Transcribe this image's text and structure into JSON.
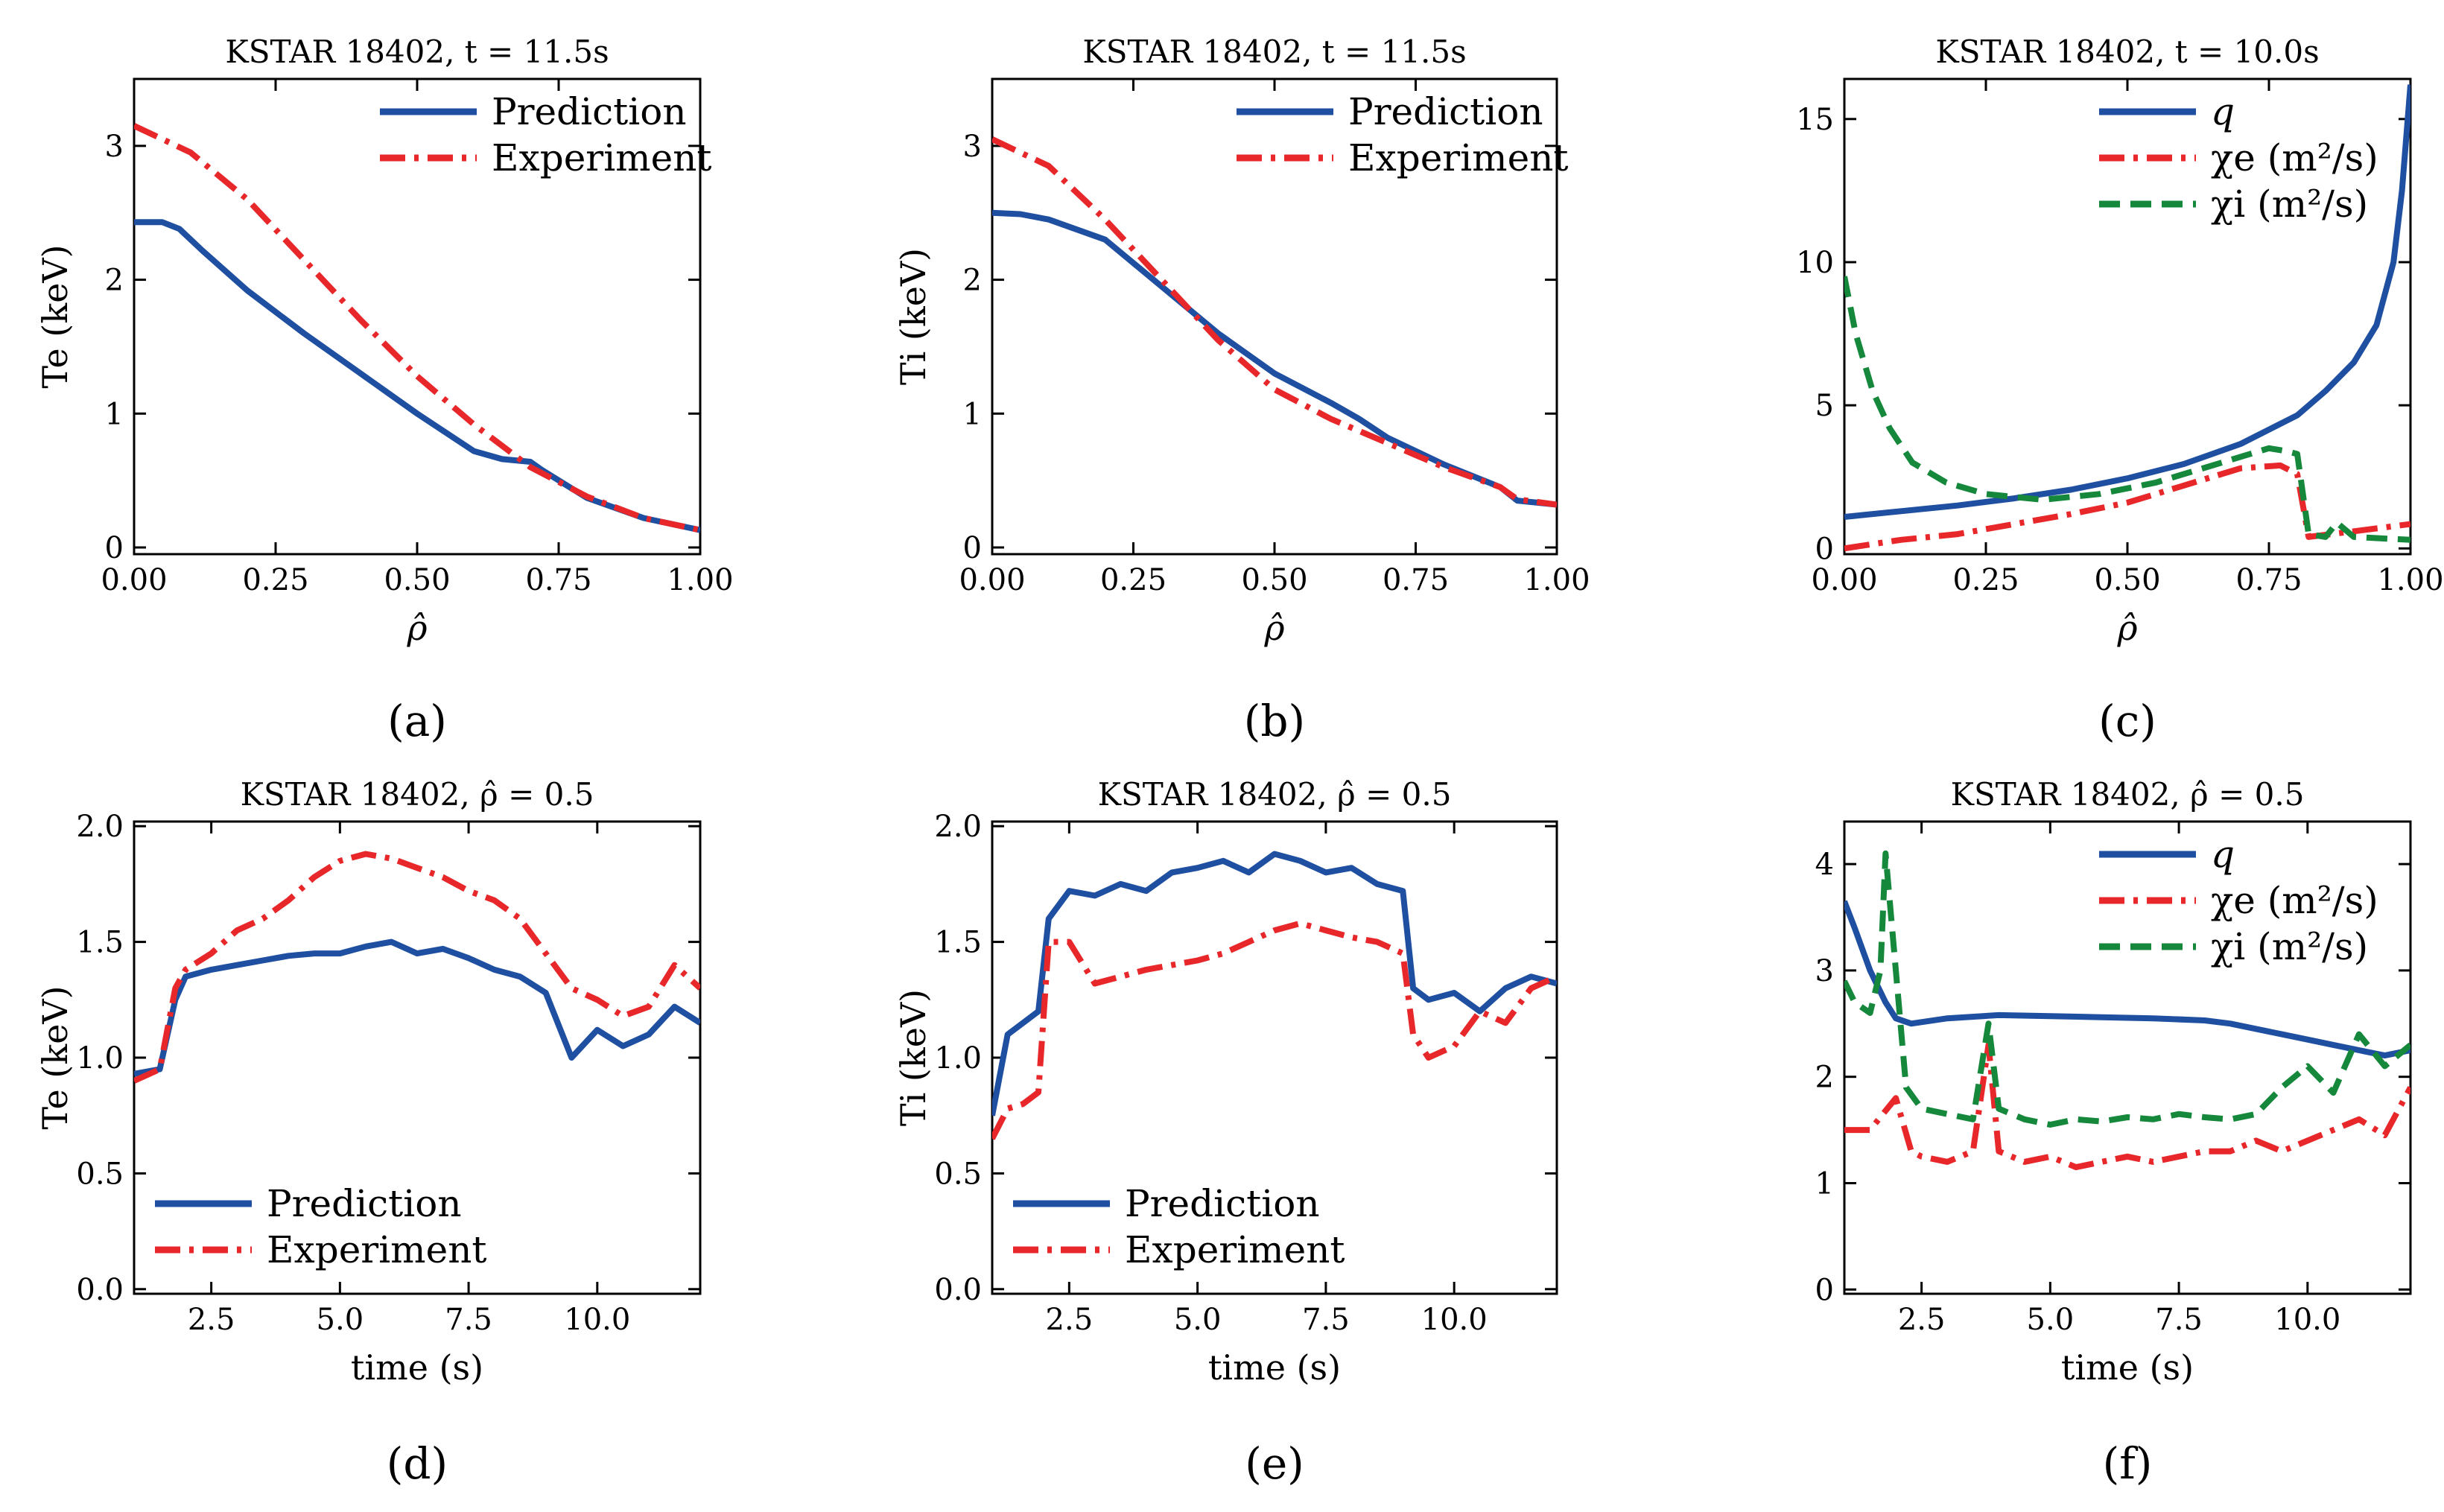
{
  "figure": {
    "colors": {
      "blue": "#1f4fa0",
      "red": "#e8272b",
      "green": "#15883c",
      "axis": "#000000"
    }
  },
  "chart_data": [
    {
      "id": "a",
      "type": "line",
      "caption": "(a)",
      "title": "KSTAR 18402, t = 11.5s",
      "xlabel": "ρ̂",
      "ylabel": "Te (keV)",
      "xlim": [
        0,
        1
      ],
      "ylim": [
        -0.05,
        3.5
      ],
      "xticks": [
        0,
        0.25,
        0.5,
        0.75,
        1.0
      ],
      "xticklabels": [
        "0.00",
        "0.25",
        "0.50",
        "0.75",
        "1.00"
      ],
      "yticks": [
        0,
        1,
        2,
        3
      ],
      "yticklabels": [
        "0",
        "1",
        "2",
        "3"
      ],
      "legend_position": "top-right",
      "series": [
        {
          "name": "Prediction",
          "color": "#1f4fa0",
          "style": "solid",
          "x": [
            0,
            0.05,
            0.08,
            0.12,
            0.2,
            0.3,
            0.4,
            0.5,
            0.6,
            0.65,
            0.7,
            0.72,
            0.8,
            0.9,
            1.0
          ],
          "y": [
            2.43,
            2.43,
            2.38,
            2.22,
            1.92,
            1.6,
            1.3,
            1.0,
            0.72,
            0.66,
            0.64,
            0.58,
            0.37,
            0.22,
            0.13
          ]
        },
        {
          "name": "Experiment",
          "color": "#e8272b",
          "style": "dashdot",
          "x": [
            0,
            0.1,
            0.2,
            0.3,
            0.4,
            0.5,
            0.6,
            0.7,
            0.8,
            0.9,
            1.0
          ],
          "y": [
            3.15,
            2.95,
            2.6,
            2.15,
            1.7,
            1.28,
            0.92,
            0.6,
            0.38,
            0.22,
            0.13
          ]
        }
      ]
    },
    {
      "id": "b",
      "type": "line",
      "caption": "(b)",
      "title": "KSTAR 18402, t = 11.5s",
      "xlabel": "ρ̂",
      "ylabel": "Ti (keV)",
      "xlim": [
        0,
        1
      ],
      "ylim": [
        -0.05,
        3.5
      ],
      "xticks": [
        0,
        0.25,
        0.5,
        0.75,
        1.0
      ],
      "xticklabels": [
        "0.00",
        "0.25",
        "0.50",
        "0.75",
        "1.00"
      ],
      "yticks": [
        0,
        1,
        2,
        3
      ],
      "yticklabels": [
        "0",
        "1",
        "2",
        "3"
      ],
      "legend_position": "top-right",
      "series": [
        {
          "name": "Prediction",
          "color": "#1f4fa0",
          "style": "solid",
          "x": [
            0,
            0.05,
            0.1,
            0.2,
            0.3,
            0.4,
            0.5,
            0.6,
            0.65,
            0.7,
            0.8,
            0.9,
            0.93,
            1.0
          ],
          "y": [
            2.5,
            2.49,
            2.45,
            2.3,
            1.95,
            1.6,
            1.3,
            1.08,
            0.96,
            0.82,
            0.62,
            0.45,
            0.35,
            0.32
          ]
        },
        {
          "name": "Experiment",
          "color": "#e8272b",
          "style": "dashdot",
          "x": [
            0,
            0.1,
            0.2,
            0.3,
            0.4,
            0.5,
            0.6,
            0.7,
            0.8,
            0.9,
            0.93,
            1.0
          ],
          "y": [
            3.05,
            2.85,
            2.45,
            2.0,
            1.55,
            1.18,
            0.96,
            0.78,
            0.6,
            0.45,
            0.36,
            0.32
          ]
        }
      ]
    },
    {
      "id": "c",
      "type": "line",
      "caption": "(c)",
      "title": "KSTAR 18402, t = 10.0s",
      "xlabel": "ρ̂",
      "ylabel": "",
      "xlim": [
        0,
        1
      ],
      "ylim": [
        -0.2,
        16.4
      ],
      "xticks": [
        0,
        0.25,
        0.5,
        0.75,
        1.0
      ],
      "xticklabels": [
        "0.00",
        "0.25",
        "0.50",
        "0.75",
        "1.00"
      ],
      "yticks": [
        0,
        5,
        10,
        15
      ],
      "yticklabels": [
        "0",
        "5",
        "10",
        "15"
      ],
      "legend_position": "top-right",
      "series": [
        {
          "name": "q",
          "color": "#1f4fa0",
          "style": "solid",
          "x": [
            0,
            0.1,
            0.2,
            0.3,
            0.4,
            0.5,
            0.6,
            0.7,
            0.8,
            0.85,
            0.9,
            0.94,
            0.97,
            0.985,
            1.0
          ],
          "y": [
            1.1,
            1.3,
            1.5,
            1.75,
            2.05,
            2.45,
            2.95,
            3.65,
            4.65,
            5.5,
            6.5,
            7.8,
            10.0,
            12.5,
            16.2
          ]
        },
        {
          "name": "χe (m²/s)",
          "color": "#e8272b",
          "style": "dashdot",
          "x": [
            0,
            0.05,
            0.1,
            0.2,
            0.3,
            0.4,
            0.5,
            0.6,
            0.7,
            0.77,
            0.8,
            0.82,
            0.9,
            1.0
          ],
          "y": [
            0.0,
            0.15,
            0.3,
            0.5,
            0.85,
            1.2,
            1.6,
            2.2,
            2.8,
            2.9,
            2.6,
            0.4,
            0.6,
            0.85
          ]
        },
        {
          "name": "χi (m²/s)",
          "color": "#15883c",
          "style": "dashed",
          "x": [
            0,
            0.02,
            0.05,
            0.08,
            0.12,
            0.18,
            0.25,
            0.35,
            0.45,
            0.55,
            0.65,
            0.75,
            0.78,
            0.8,
            0.82,
            0.85,
            0.87,
            0.9,
            1.0
          ],
          "y": [
            9.5,
            7.5,
            5.5,
            4.2,
            3.0,
            2.3,
            1.9,
            1.7,
            1.9,
            2.3,
            2.9,
            3.5,
            3.4,
            3.3,
            0.5,
            0.4,
            0.9,
            0.4,
            0.3
          ]
        }
      ]
    },
    {
      "id": "d",
      "type": "line",
      "caption": "(d)",
      "title": "KSTAR 18402, ρ̂ = 0.5",
      "xlabel": "time (s)",
      "ylabel": "Te (keV)",
      "xlim": [
        1,
        12
      ],
      "ylim": [
        -0.02,
        2.02
      ],
      "xticks": [
        2.5,
        5.0,
        7.5,
        10.0
      ],
      "xticklabels": [
        "2.5",
        "5.0",
        "7.5",
        "10.0"
      ],
      "yticks": [
        0,
        0.5,
        1.0,
        1.5,
        2.0
      ],
      "yticklabels": [
        "0.0",
        "0.5",
        "1.0",
        "1.5",
        "2.0"
      ],
      "legend_position": "bottom-left",
      "series": [
        {
          "name": "Prediction",
          "color": "#1f4fa0",
          "style": "solid",
          "x": [
            1.0,
            1.5,
            1.8,
            2.0,
            2.5,
            3.0,
            3.5,
            4.0,
            4.5,
            5.0,
            5.5,
            6.0,
            6.5,
            7.0,
            7.5,
            8.0,
            8.5,
            9.0,
            9.5,
            10.0,
            10.5,
            11.0,
            11.5,
            12.0
          ],
          "y": [
            0.93,
            0.95,
            1.25,
            1.35,
            1.38,
            1.4,
            1.42,
            1.44,
            1.45,
            1.45,
            1.48,
            1.5,
            1.45,
            1.47,
            1.43,
            1.38,
            1.35,
            1.28,
            1.0,
            1.12,
            1.05,
            1.1,
            1.22,
            1.15
          ]
        },
        {
          "name": "Experiment",
          "color": "#e8272b",
          "style": "dashdot",
          "x": [
            1.0,
            1.5,
            1.8,
            2.0,
            2.5,
            3.0,
            3.5,
            4.0,
            4.5,
            5.0,
            5.5,
            6.0,
            6.5,
            7.0,
            7.5,
            8.0,
            8.5,
            9.0,
            9.5,
            10.0,
            10.5,
            11.0,
            11.5,
            12.0
          ],
          "y": [
            0.9,
            0.95,
            1.3,
            1.38,
            1.45,
            1.55,
            1.6,
            1.68,
            1.78,
            1.85,
            1.88,
            1.86,
            1.82,
            1.78,
            1.72,
            1.68,
            1.6,
            1.45,
            1.3,
            1.25,
            1.18,
            1.22,
            1.4,
            1.3
          ]
        }
      ]
    },
    {
      "id": "e",
      "type": "line",
      "caption": "(e)",
      "title": "KSTAR 18402, ρ̂ = 0.5",
      "xlabel": "time (s)",
      "ylabel": "Ti (keV)",
      "xlim": [
        1,
        12
      ],
      "ylim": [
        -0.02,
        2.02
      ],
      "xticks": [
        2.5,
        5.0,
        7.5,
        10.0
      ],
      "xticklabels": [
        "2.5",
        "5.0",
        "7.5",
        "10.0"
      ],
      "yticks": [
        0,
        0.5,
        1.0,
        1.5,
        2.0
      ],
      "yticklabels": [
        "0.0",
        "0.5",
        "1.0",
        "1.5",
        "2.0"
      ],
      "legend_position": "bottom-left",
      "series": [
        {
          "name": "Prediction",
          "color": "#1f4fa0",
          "style": "solid",
          "x": [
            1.0,
            1.3,
            1.6,
            1.9,
            2.1,
            2.5,
            3.0,
            3.5,
            4.0,
            4.5,
            5.0,
            5.5,
            6.0,
            6.5,
            7.0,
            7.5,
            8.0,
            8.5,
            9.0,
            9.2,
            9.5,
            10.0,
            10.5,
            11.0,
            11.5,
            12.0
          ],
          "y": [
            0.75,
            1.1,
            1.15,
            1.2,
            1.6,
            1.72,
            1.7,
            1.75,
            1.72,
            1.8,
            1.82,
            1.85,
            1.8,
            1.88,
            1.85,
            1.8,
            1.82,
            1.75,
            1.72,
            1.3,
            1.25,
            1.28,
            1.2,
            1.3,
            1.35,
            1.32
          ]
        },
        {
          "name": "Experiment",
          "color": "#e8272b",
          "style": "dashdot",
          "x": [
            1.0,
            1.3,
            1.6,
            1.9,
            2.1,
            2.5,
            3.0,
            3.5,
            4.0,
            4.5,
            5.0,
            5.5,
            6.0,
            6.5,
            7.0,
            7.5,
            8.0,
            8.5,
            9.0,
            9.2,
            9.5,
            10.0,
            10.5,
            11.0,
            11.5,
            12.0
          ],
          "y": [
            0.65,
            0.78,
            0.8,
            0.85,
            1.5,
            1.5,
            1.32,
            1.35,
            1.38,
            1.4,
            1.42,
            1.45,
            1.5,
            1.55,
            1.58,
            1.55,
            1.52,
            1.5,
            1.45,
            1.1,
            1.0,
            1.05,
            1.2,
            1.15,
            1.3,
            1.35
          ]
        }
      ]
    },
    {
      "id": "f",
      "type": "line",
      "caption": "(f)",
      "title": "KSTAR 18402, ρ̂ = 0.5",
      "xlabel": "time (s)",
      "ylabel": "",
      "xlim": [
        1,
        12
      ],
      "ylim": [
        -0.04,
        4.4
      ],
      "xticks": [
        2.5,
        5.0,
        7.5,
        10.0
      ],
      "xticklabels": [
        "2.5",
        "5.0",
        "7.5",
        "10.0"
      ],
      "yticks": [
        0,
        1,
        2,
        3,
        4
      ],
      "yticklabels": [
        "0",
        "1",
        "2",
        "3",
        "4"
      ],
      "legend_position": "top-right",
      "series": [
        {
          "name": "q",
          "color": "#1f4fa0",
          "style": "solid",
          "x": [
            1.0,
            1.2,
            1.5,
            1.8,
            2.0,
            2.3,
            3.0,
            4.0,
            5.0,
            6.0,
            7.0,
            8.0,
            8.5,
            9.0,
            9.5,
            10.0,
            10.5,
            11.0,
            11.5,
            12.0
          ],
          "y": [
            3.65,
            3.4,
            3.0,
            2.7,
            2.55,
            2.5,
            2.55,
            2.58,
            2.57,
            2.56,
            2.55,
            2.53,
            2.5,
            2.45,
            2.4,
            2.35,
            2.3,
            2.25,
            2.2,
            2.25
          ]
        },
        {
          "name": "χe (m²/s)",
          "color": "#e8272b",
          "style": "dashdot",
          "x": [
            1.0,
            1.5,
            2.0,
            2.3,
            2.5,
            3.0,
            3.5,
            3.8,
            4.0,
            4.5,
            5.0,
            5.5,
            6.0,
            6.5,
            7.0,
            7.5,
            8.0,
            8.5,
            9.0,
            9.5,
            10.0,
            10.5,
            11.0,
            11.5,
            12.0
          ],
          "y": [
            1.5,
            1.5,
            1.8,
            1.3,
            1.25,
            1.2,
            1.3,
            2.3,
            1.3,
            1.2,
            1.25,
            1.15,
            1.2,
            1.25,
            1.2,
            1.25,
            1.3,
            1.3,
            1.4,
            1.3,
            1.4,
            1.5,
            1.6,
            1.45,
            1.9
          ]
        },
        {
          "name": "χi (m²/s)",
          "color": "#15883c",
          "style": "dashed",
          "x": [
            1.0,
            1.2,
            1.5,
            1.7,
            1.8,
            2.0,
            2.2,
            2.5,
            3.0,
            3.5,
            3.8,
            4.0,
            4.5,
            5.0,
            5.5,
            6.0,
            6.5,
            7.0,
            7.5,
            8.0,
            8.5,
            9.0,
            9.5,
            10.0,
            10.5,
            11.0,
            11.5,
            12.0
          ],
          "y": [
            2.9,
            2.7,
            2.6,
            3.0,
            4.1,
            3.0,
            1.9,
            1.7,
            1.65,
            1.6,
            2.5,
            1.7,
            1.6,
            1.55,
            1.6,
            1.58,
            1.62,
            1.6,
            1.65,
            1.62,
            1.6,
            1.65,
            1.9,
            2.1,
            1.85,
            2.4,
            2.1,
            2.3
          ]
        }
      ]
    }
  ]
}
